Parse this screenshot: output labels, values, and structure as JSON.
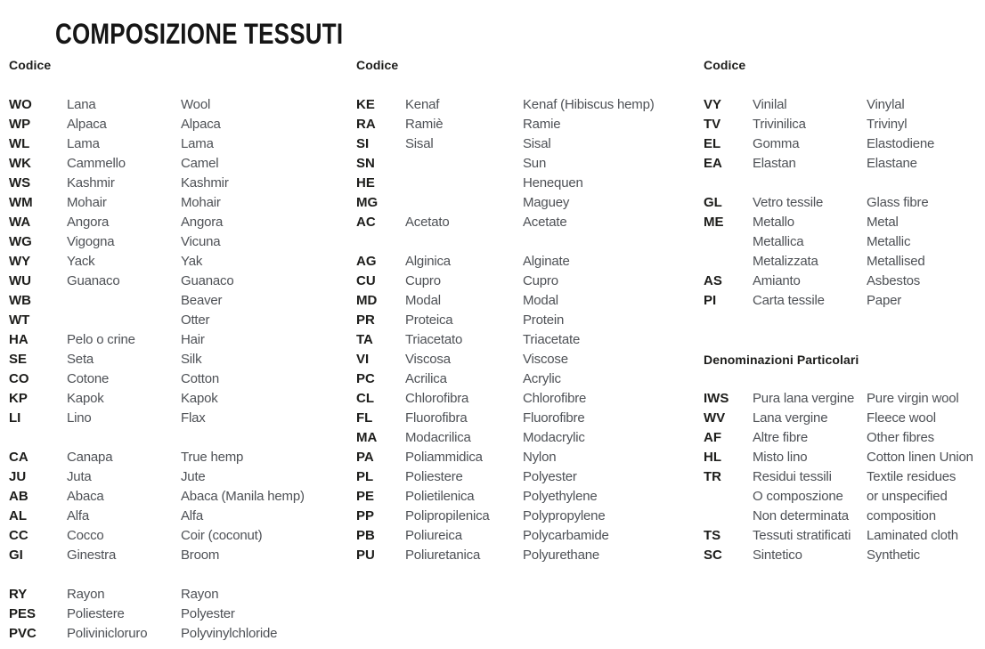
{
  "title": "COMPOSIZIONE TESSUTI",
  "colors": {
    "background": "#ffffff",
    "text_primary": "#1d1d1b",
    "text_secondary": "#4e5156"
  },
  "columns": [
    {
      "header": "Codice",
      "blocks": [
        {
          "type": "rows",
          "rows": [
            {
              "code": "WO",
              "it": "Lana",
              "en": "Wool"
            },
            {
              "code": "WP",
              "it": "Alpaca",
              "en": "Alpaca"
            },
            {
              "code": "WL",
              "it": "Lama",
              "en": "Lama"
            },
            {
              "code": "WK",
              "it": "Cammello",
              "en": "Camel"
            },
            {
              "code": "WS",
              "it": "Kashmir",
              "en": "Kashmir"
            },
            {
              "code": "WM",
              "it": "Mohair",
              "en": "Mohair"
            },
            {
              "code": "WA",
              "it": "Angora",
              "en": "Angora"
            },
            {
              "code": "WG",
              "it": "Vigogna",
              "en": "Vicuna"
            },
            {
              "code": "WY",
              "it": "Yack",
              "en": "Yak"
            },
            {
              "code": "WU",
              "it": "Guanaco",
              "en": "Guanaco"
            },
            {
              "code": "WB",
              "it": "",
              "en": "Beaver"
            },
            {
              "code": "WT",
              "it": "",
              "en": "Otter"
            },
            {
              "code": "HA",
              "it": "Pelo o crine",
              "en": "Hair"
            },
            {
              "code": "SE",
              "it": "Seta",
              "en": "Silk"
            },
            {
              "code": "CO",
              "it": "Cotone",
              "en": "Cotton"
            },
            {
              "code": "KP",
              "it": "Kapok",
              "en": "Kapok"
            },
            {
              "code": "LI",
              "it": "Lino",
              "en": "Flax"
            }
          ]
        },
        {
          "type": "gap"
        },
        {
          "type": "rows",
          "rows": [
            {
              "code": "CA",
              "it": "Canapa",
              "en": "True hemp"
            },
            {
              "code": "JU",
              "it": "Juta",
              "en": "Jute"
            },
            {
              "code": "AB",
              "it": "Abaca",
              "en": "Abaca (Manila hemp)"
            },
            {
              "code": "AL",
              "it": "Alfa",
              "en": "Alfa"
            },
            {
              "code": "CC",
              "it": "Cocco",
              "en": "Coir (coconut)"
            },
            {
              "code": "GI",
              "it": "Ginestra",
              "en": "Broom"
            }
          ]
        },
        {
          "type": "gap"
        },
        {
          "type": "rows",
          "rows": [
            {
              "code": "RY",
              "it": "Rayon",
              "en": "Rayon"
            },
            {
              "code": "PES",
              "it": "Poliestere",
              "en": "Polyester"
            },
            {
              "code": "PVC",
              "it": "Polivinicloruro",
              "en": "Polyvinylchloride"
            }
          ]
        }
      ]
    },
    {
      "header": "Codice",
      "blocks": [
        {
          "type": "rows",
          "rows": [
            {
              "code": "KE",
              "it": "Kenaf",
              "en": "Kenaf (Hibiscus hemp)"
            },
            {
              "code": "RA",
              "it": "Ramiè",
              "en": "Ramie"
            },
            {
              "code": "SI",
              "it": "Sisal",
              "en": "Sisal"
            },
            {
              "code": "SN",
              "it": "",
              "en": "Sun"
            },
            {
              "code": "HE",
              "it": "",
              "en": "Henequen"
            },
            {
              "code": "MG",
              "it": "",
              "en": "Maguey"
            },
            {
              "code": "AC",
              "it": "Acetato",
              "en": "Acetate"
            }
          ]
        },
        {
          "type": "gap"
        },
        {
          "type": "rows",
          "rows": [
            {
              "code": "AG",
              "it": "Alginica",
              "en": "Alginate"
            },
            {
              "code": "CU",
              "it": "Cupro",
              "en": "Cupro"
            },
            {
              "code": "MD",
              "it": "Modal",
              "en": "Modal"
            },
            {
              "code": "PR",
              "it": "Proteica",
              "en": "Protein"
            },
            {
              "code": "TA",
              "it": "Triacetato",
              "en": "Triacetate"
            },
            {
              "code": "VI",
              "it": "Viscosa",
              "en": "Viscose"
            },
            {
              "code": "PC",
              "it": "Acrilica",
              "en": "Acrylic"
            },
            {
              "code": "CL",
              "it": "Chlorofibra",
              "en": "Chlorofibre"
            },
            {
              "code": "FL",
              "it": "Fluorofibra",
              "en": "Fluorofibre"
            },
            {
              "code": "MA",
              "it": "Modacrilica",
              "en": "Modacrylic"
            },
            {
              "code": "PA",
              "it": "Poliammidica",
              "en": "Nylon"
            },
            {
              "code": "PL",
              "it": "Poliestere",
              "en": "Polyester"
            },
            {
              "code": "PE",
              "it": "Polietilenica",
              "en": "Polyethylene"
            },
            {
              "code": "PP",
              "it": "Polipropilenica",
              "en": "Polypropylene"
            },
            {
              "code": "PB",
              "it": "Poliureica",
              "en": "Polycarbamide"
            },
            {
              "code": "PU",
              "it": "Poliuretanica",
              "en": "Polyurethane"
            }
          ]
        }
      ]
    },
    {
      "header": "Codice",
      "blocks": [
        {
          "type": "rows",
          "rows": [
            {
              "code": "VY",
              "it": "Vinilal",
              "en": "Vinylal"
            },
            {
              "code": "TV",
              "it": "Trivinilica",
              "en": "Trivinyl"
            },
            {
              "code": "EL",
              "it": "Gomma",
              "en": "Elastodiene"
            },
            {
              "code": "EA",
              "it": "Elastan",
              "en": "Elastane"
            }
          ]
        },
        {
          "type": "gap"
        },
        {
          "type": "rows",
          "rows": [
            {
              "code": "GL",
              "it": "Vetro tessile",
              "en": "Glass fibre"
            },
            {
              "code": "ME",
              "it": "Metallo",
              "en": "Metal"
            },
            {
              "code": "",
              "it": "Metallica",
              "en": "Metallic"
            },
            {
              "code": "",
              "it": "Metalizzata",
              "en": "Metallised"
            },
            {
              "code": "AS",
              "it": "Amianto",
              "en": "Asbestos"
            },
            {
              "code": "PI",
              "it": "Carta tessile",
              "en": "Paper"
            }
          ]
        },
        {
          "type": "gap"
        },
        {
          "type": "gap"
        },
        {
          "type": "heading",
          "text": "Denominazioni Particolari"
        },
        {
          "type": "gap"
        },
        {
          "type": "rows",
          "rows": [
            {
              "code": "IWS",
              "it": "Pura lana vergine",
              "en": "Pure virgin wool"
            },
            {
              "code": "WV",
              "it": "Lana vergine",
              "en": "Fleece wool"
            },
            {
              "code": "AF",
              "it": "Altre fibre",
              "en": "Other fibres"
            },
            {
              "code": "HL",
              "it": "Misto lino",
              "en": "Cotton linen Union"
            },
            {
              "code": "TR",
              "it": "Residui tessili",
              "en": "Textile residues"
            },
            {
              "code": "",
              "it": "O composzione",
              "en": "or unspecified"
            },
            {
              "code": "",
              "it": "Non determinata",
              "en": "composition"
            },
            {
              "code": "TS",
              "it": "Tessuti stratificati",
              "en": "Laminated cloth"
            },
            {
              "code": "SC",
              "it": "Sintetico",
              "en": "Synthetic"
            }
          ]
        }
      ]
    }
  ]
}
